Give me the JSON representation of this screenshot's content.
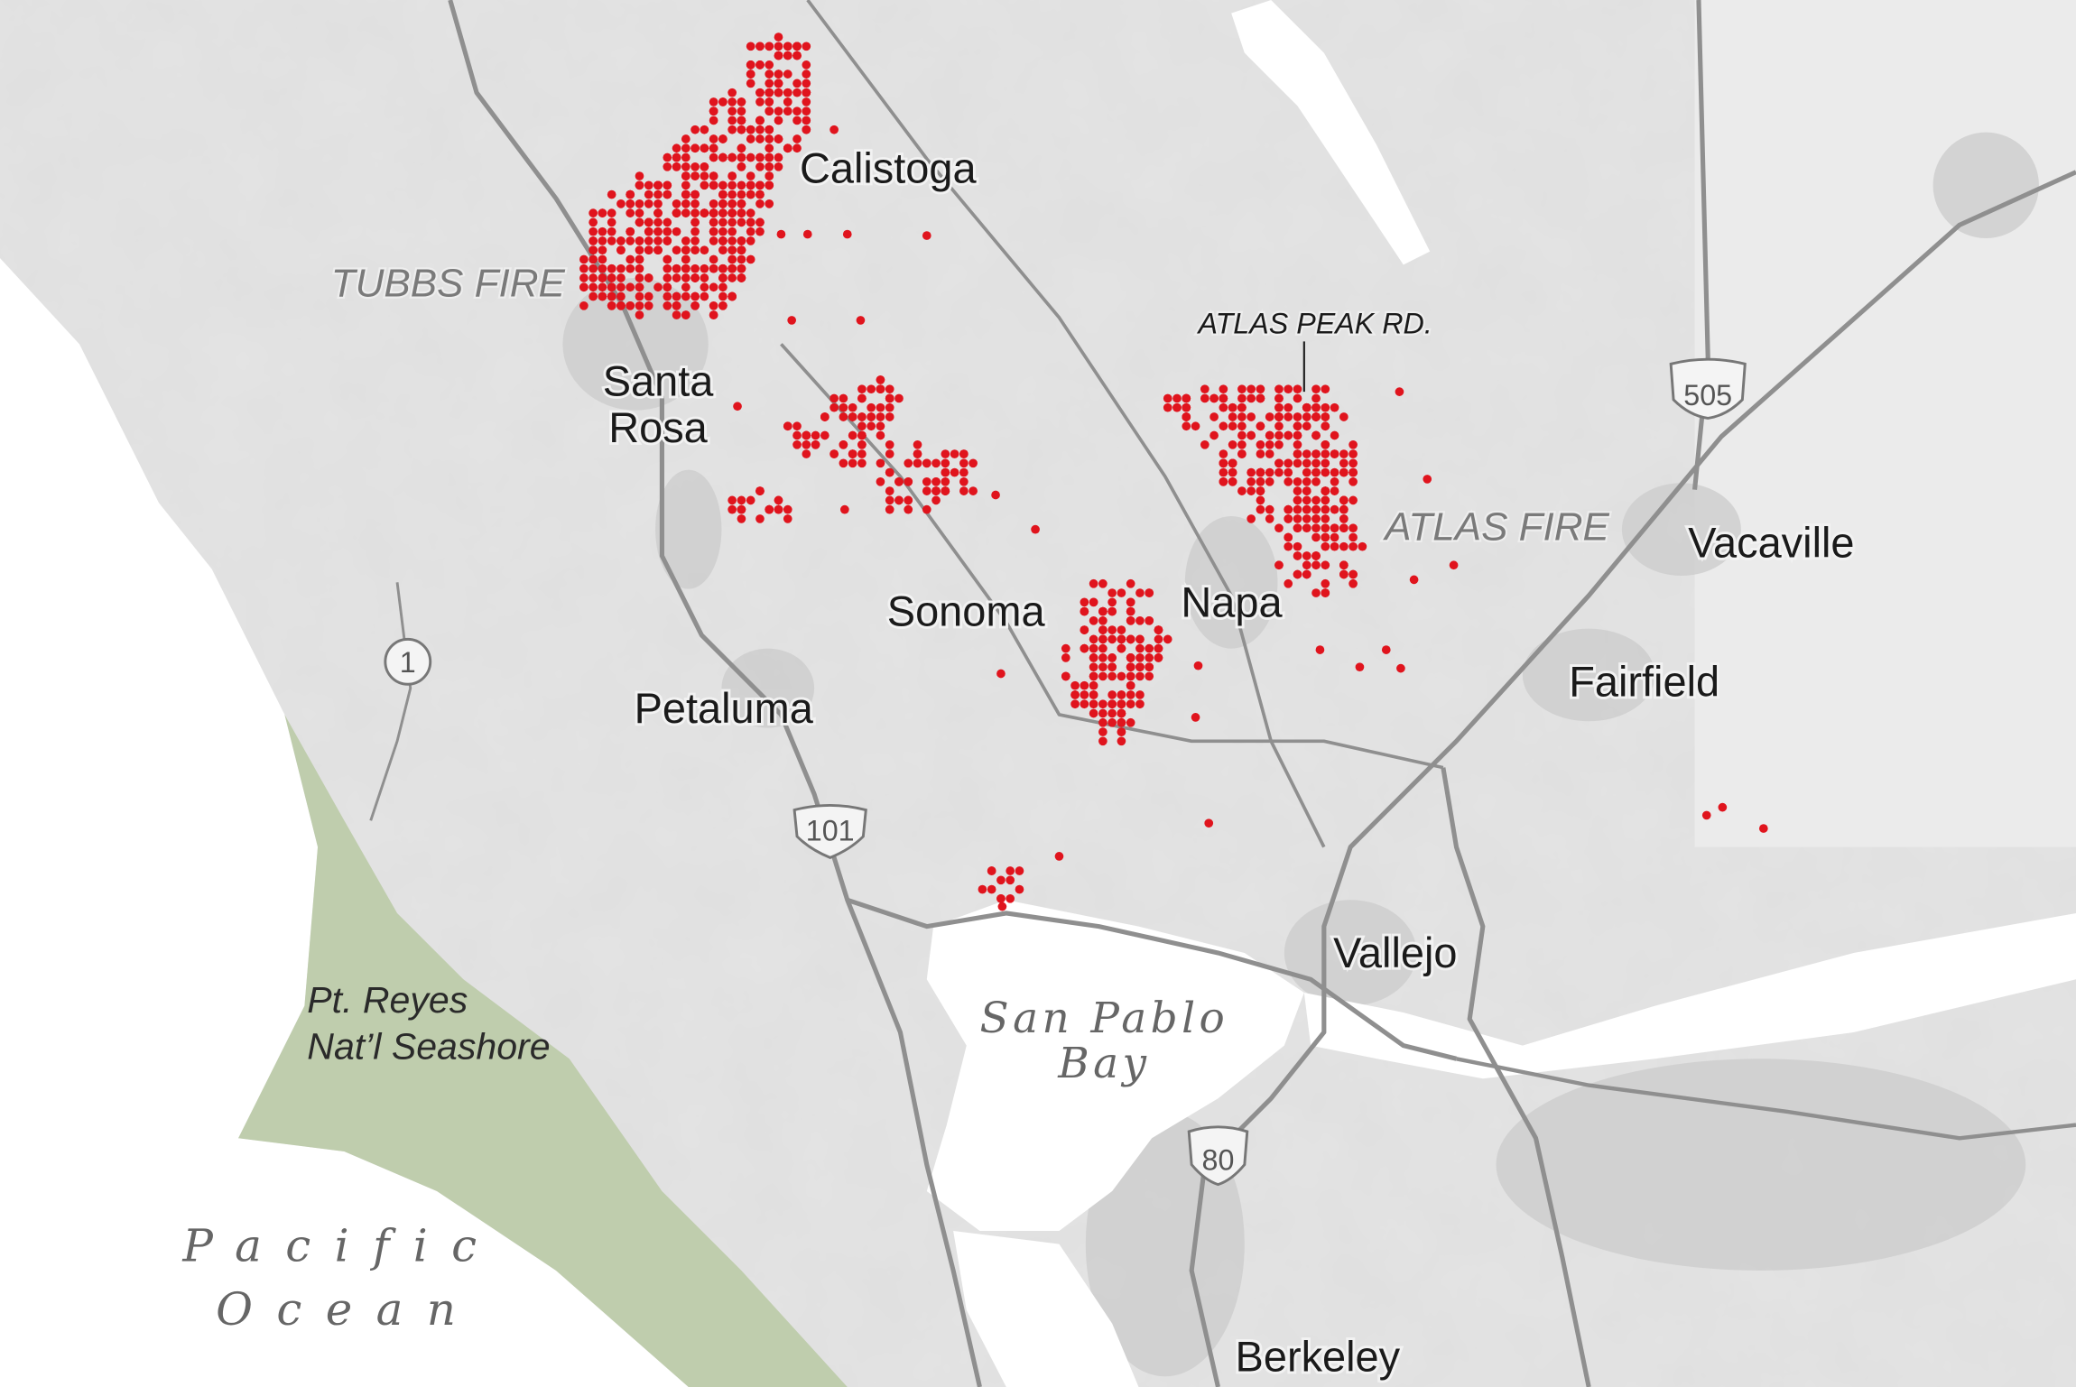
{
  "map": {
    "colors": {
      "land": "#e4e4e4",
      "water": "#ffffff",
      "park": "#b9c9a3",
      "road": "#8f8f8f",
      "urban": "#cfcfcf",
      "fire_dot": "#e0141d"
    },
    "cities": {
      "calistoga": "Calistoga",
      "santa_rosa_1": "Santa",
      "santa_rosa_2": "Rosa",
      "sonoma": "Sonoma",
      "napa": "Napa",
      "vacaville": "Vacaville",
      "fairfield": "Fairfield",
      "petaluma": "Petaluma",
      "vallejo": "Vallejo",
      "berkeley": "Berkeley"
    },
    "fires": {
      "tubbs": "TUBBS FIRE",
      "atlas": "ATLAS FIRE"
    },
    "road_callout": "ATLAS PEAK RD.",
    "park": {
      "line1": "Pt. Reyes",
      "line2": "Nat’l Seashore"
    },
    "water": {
      "bay_line1": "San Pablo",
      "bay_line2": "Bay",
      "ocean_line1": "Pacific",
      "ocean_line2": "Ocean"
    },
    "highways": {
      "ca1": "1",
      "us101": "101",
      "i80": "80",
      "i505": "505"
    }
  }
}
